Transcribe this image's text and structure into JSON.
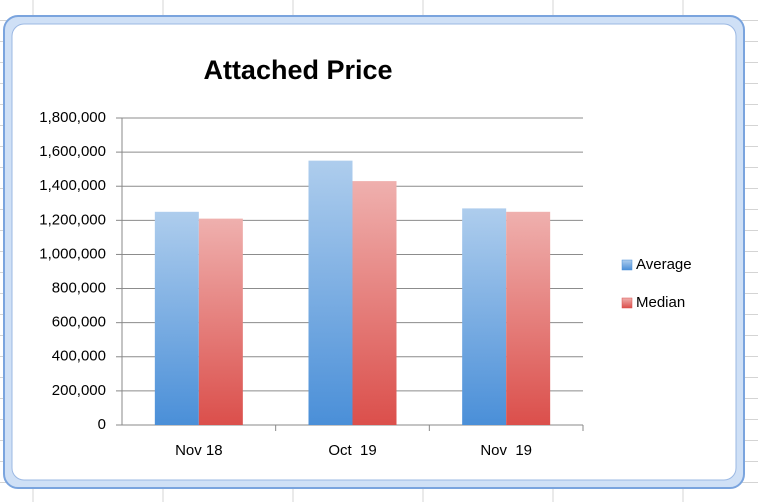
{
  "chart_data": {
    "type": "bar",
    "title": "Attached Price",
    "categories": [
      "Nov 18",
      "Oct  19",
      "Nov  19"
    ],
    "series": [
      {
        "name": "Average",
        "color": "#4a8fd8",
        "values": [
          1250000,
          1550000,
          1270000
        ]
      },
      {
        "name": "Median",
        "color": "#db4f4b",
        "values": [
          1210000,
          1430000,
          1250000
        ]
      }
    ],
    "ylim": [
      0,
      1800000
    ],
    "yticks": [
      0,
      {
        "value": 200000,
        "label": "200,000"
      },
      {
        "value": 400000,
        "label": "400,000"
      },
      {
        "value": 600000,
        "label": "600,000"
      },
      {
        "value": 800000,
        "label": "800,000"
      },
      {
        "value": 1000000,
        "label": "1,000,000"
      },
      {
        "value": 1200000,
        "label": "1,200,000"
      },
      {
        "value": 1400000,
        "label": "1,400,000"
      },
      {
        "value": 1600000,
        "label": "1,600,000"
      },
      {
        "value": 1800000,
        "label": "1,800,000"
      }
    ],
    "grid": true,
    "legend": "right"
  }
}
